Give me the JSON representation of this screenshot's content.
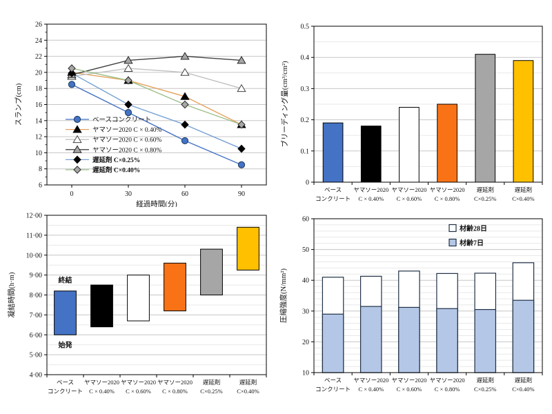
{
  "categories": [
    {
      "line1": "ベース",
      "line2": "コンクリート"
    },
    {
      "line1": "ヤマソー2020",
      "line2": "C × 0.40%"
    },
    {
      "line1": "ヤマソー2020",
      "line2": "C × 0.60%"
    },
    {
      "line1": "ヤマソー2020",
      "line2": "C × 0.80%"
    },
    {
      "line1": "遅延剤",
      "line2": "C×0.25%"
    },
    {
      "line1": "遅延剤",
      "line2": "C×0.40%"
    }
  ],
  "chart_data": [
    {
      "id": "slump",
      "type": "line",
      "ylabel": "スランプ(cm)",
      "xlabel": "経過時間(分)",
      "ylim": [
        6,
        26
      ],
      "ytick_labels": [
        "6",
        "8",
        "10",
        "12",
        "14",
        "16",
        "18",
        "20",
        "22",
        "24",
        "26"
      ],
      "x": [
        0,
        30,
        60,
        90
      ],
      "xtick_labels": [
        "0",
        "30",
        "60",
        "90"
      ],
      "grid": "horizontal-major",
      "legend_position": "inside-left-bottom",
      "series": [
        {
          "name": "ベースコンクリート",
          "values": [
            18.5,
            15.0,
            11.5,
            8.5
          ],
          "marker": "circle",
          "marker_fill": "#4472C4",
          "marker_stroke": "#17375E",
          "line_color": "#4472C4",
          "bold": false
        },
        {
          "name": "ヤマソー2020 C × 0.40%",
          "values": [
            20.0,
            19.0,
            17.0,
            13.5
          ],
          "marker": "triangle",
          "marker_fill": "#000000",
          "marker_stroke": "#000000",
          "line_color": "#E5A15B",
          "bold": false
        },
        {
          "name": "ヤマソー2020 C × 0.60%",
          "values": [
            19.5,
            20.5,
            20.0,
            18.0
          ],
          "marker": "triangle",
          "marker_fill": "#FFFFFF",
          "marker_stroke": "#404040",
          "line_color": "#C0C0C0",
          "bold": false
        },
        {
          "name": "ヤマソー2020 C × 0.80%",
          "values": [
            19.7,
            21.5,
            22.0,
            21.5
          ],
          "marker": "triangle",
          "marker_fill": "#A6A6A6",
          "marker_stroke": "#262626",
          "line_color": "#404040",
          "bold": false
        },
        {
          "name": "遅延剤  C×0.25%",
          "values": [
            19.9,
            16.0,
            13.5,
            10.5
          ],
          "marker": "diamond",
          "marker_fill": "#000000",
          "marker_stroke": "#000000",
          "line_color": "#74A0D4",
          "bold": true
        },
        {
          "name": "遅延剤  C×0.40%",
          "values": [
            20.5,
            19.0,
            16.0,
            13.5
          ],
          "marker": "diamond",
          "marker_fill": "#A6A6A6",
          "marker_stroke": "#262626",
          "line_color": "#9CBF88",
          "bold": true
        }
      ]
    },
    {
      "id": "bleeding",
      "type": "bar",
      "ylabel": "ブリーディング量(cm³/cm²)",
      "ylim": [
        0,
        0.5
      ],
      "minor_step": 0.05,
      "ytick_labels": [
        "0",
        "0.1",
        "0.2",
        "0.3",
        "0.4",
        "0.5"
      ],
      "values": [
        0.19,
        0.18,
        0.24,
        0.25,
        0.41,
        0.39
      ],
      "bar_colors": [
        "#4472C4",
        "#000000",
        "#FFFFFF",
        "#F97316",
        "#A6A6A6",
        "#FFC000"
      ],
      "bar_stroke": "#000000"
    },
    {
      "id": "setting_time",
      "type": "floating-bar",
      "ylabel": "凝結時間(h·m)",
      "ylim": [
        4,
        12
      ],
      "minor_step": 0.5,
      "ytick_labels": [
        "4·00",
        "5·00",
        "6·00",
        "7·00",
        "8·00",
        "9·00",
        "10·00",
        "11·00",
        "12·00"
      ],
      "ranges": [
        {
          "start": 6.0,
          "end": 8.2
        },
        {
          "start": 6.4,
          "end": 8.5
        },
        {
          "start": 6.7,
          "end": 9.0
        },
        {
          "start": 7.2,
          "end": 9.6
        },
        {
          "start": 8.0,
          "end": 10.3
        },
        {
          "start": 9.25,
          "end": 11.4
        }
      ],
      "bar_colors": [
        "#4472C4",
        "#000000",
        "#FFFFFF",
        "#F97316",
        "#A6A6A6",
        "#FFC000"
      ],
      "bar_stroke": "#000000",
      "annotations": [
        {
          "text": "終結",
          "position": "above-first-bar"
        },
        {
          "text": "始発",
          "position": "below-first-bar"
        }
      ]
    },
    {
      "id": "compressive_strength",
      "type": "overlay-bar",
      "ylabel": "圧縮強度(N/mm²)",
      "ylim": [
        10,
        60
      ],
      "minor_step": 2,
      "ytick_labels": [
        "10",
        "20",
        "30",
        "40",
        "50",
        "60"
      ],
      "series": [
        {
          "name": "材齢28日",
          "fill": "#FFFFFF",
          "values": [
            41.0,
            41.3,
            43.0,
            42.2,
            42.3,
            45.7
          ]
        },
        {
          "name": "材齢7日",
          "fill": "#B4C7E7",
          "values": [
            29.0,
            31.5,
            31.2,
            30.8,
            30.5,
            33.5
          ]
        }
      ],
      "bar_stroke": "#1F3045",
      "legend_position": "inside-top-right"
    }
  ]
}
